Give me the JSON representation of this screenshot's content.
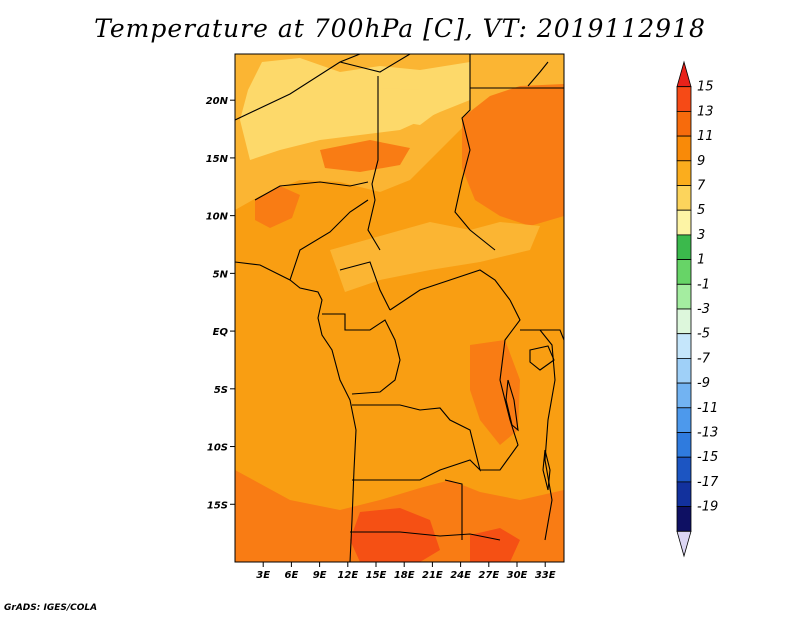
{
  "title": "Temperature at 700hPa [C], VT: 2019112918",
  "credit": "GrADS: IGES/COLA",
  "map": {
    "lat_labels": [
      "20N",
      "15N",
      "10N",
      "5N",
      "EQ",
      "5S",
      "10S",
      "15S"
    ],
    "lon_labels": [
      "3E",
      "6E",
      "9E",
      "12E",
      "15E",
      "18E",
      "21E",
      "24E",
      "27E",
      "30E",
      "33E"
    ],
    "lat_range": [
      -20,
      24
    ],
    "lon_range": [
      0,
      35
    ]
  },
  "colorbar": {
    "levels": [
      "15",
      "13",
      "11",
      "9",
      "7",
      "5",
      "3",
      "1",
      "-1",
      "-3",
      "-5",
      "-7",
      "-9",
      "-11",
      "-13",
      "-15",
      "-17",
      "-19"
    ],
    "colors": [
      "#e8221a",
      "#f64a16",
      "#f76b0c",
      "#f98a08",
      "#fbad1d",
      "#fcd45c",
      "#fdf4a5",
      "#3bb94c",
      "#67d467",
      "#a4eda0",
      "#ddf7dc",
      "#c5e6fb",
      "#9fd0f8",
      "#72b3f2",
      "#4d99ec",
      "#2f7bde",
      "#1c55c2",
      "#12319d",
      "#0e1063",
      "#dcd6f3"
    ]
  },
  "field_colors": {
    "t5": "#fdd96a",
    "t7": "#fbb533",
    "t9": "#f99e12",
    "t11": "#f97c14",
    "t13": "#f55014"
  }
}
